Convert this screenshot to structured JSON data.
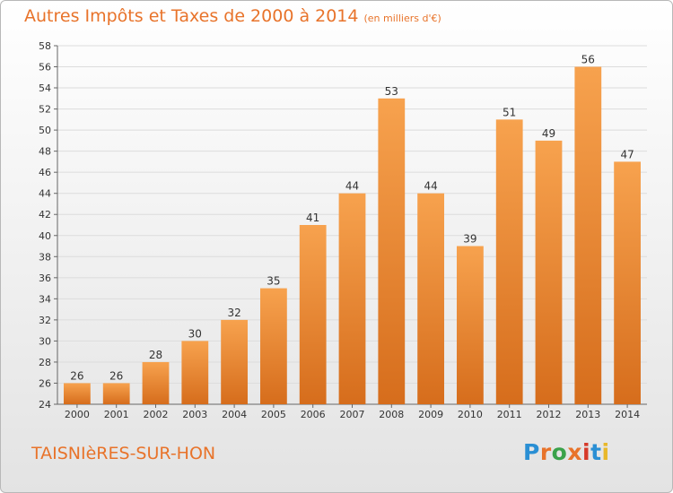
{
  "title": "Autres Impôts et Taxes de 2000 à 2014",
  "subtitle": "(en milliers d'€)",
  "commune": "TAISNIèRES-SUR-HON",
  "logo": {
    "letters": [
      "P",
      "r",
      "o",
      "x",
      "i",
      "t",
      "i"
    ],
    "colors": [
      "#2a8fd4",
      "#e8732a",
      "#3aa24a",
      "#e8732a",
      "#d63a2a",
      "#2a8fd4",
      "#e8b82a"
    ]
  },
  "colors": {
    "bar_top": "#f7a24e",
    "bar_bottom": "#d66d1c",
    "title": "#e8732a"
  },
  "chart_data": {
    "type": "bar",
    "categories": [
      "2000",
      "2001",
      "2002",
      "2003",
      "2004",
      "2005",
      "2006",
      "2007",
      "2008",
      "2009",
      "2010",
      "2011",
      "2012",
      "2013",
      "2014"
    ],
    "values": [
      26,
      26,
      28,
      30,
      32,
      35,
      41,
      44,
      53,
      44,
      39,
      51,
      49,
      56,
      47
    ],
    "ylim": [
      24,
      58
    ],
    "yticks": [
      24,
      26,
      28,
      30,
      32,
      34,
      36,
      38,
      40,
      42,
      44,
      46,
      48,
      50,
      52,
      54,
      56,
      58
    ],
    "grid": true,
    "data_labels": true
  }
}
